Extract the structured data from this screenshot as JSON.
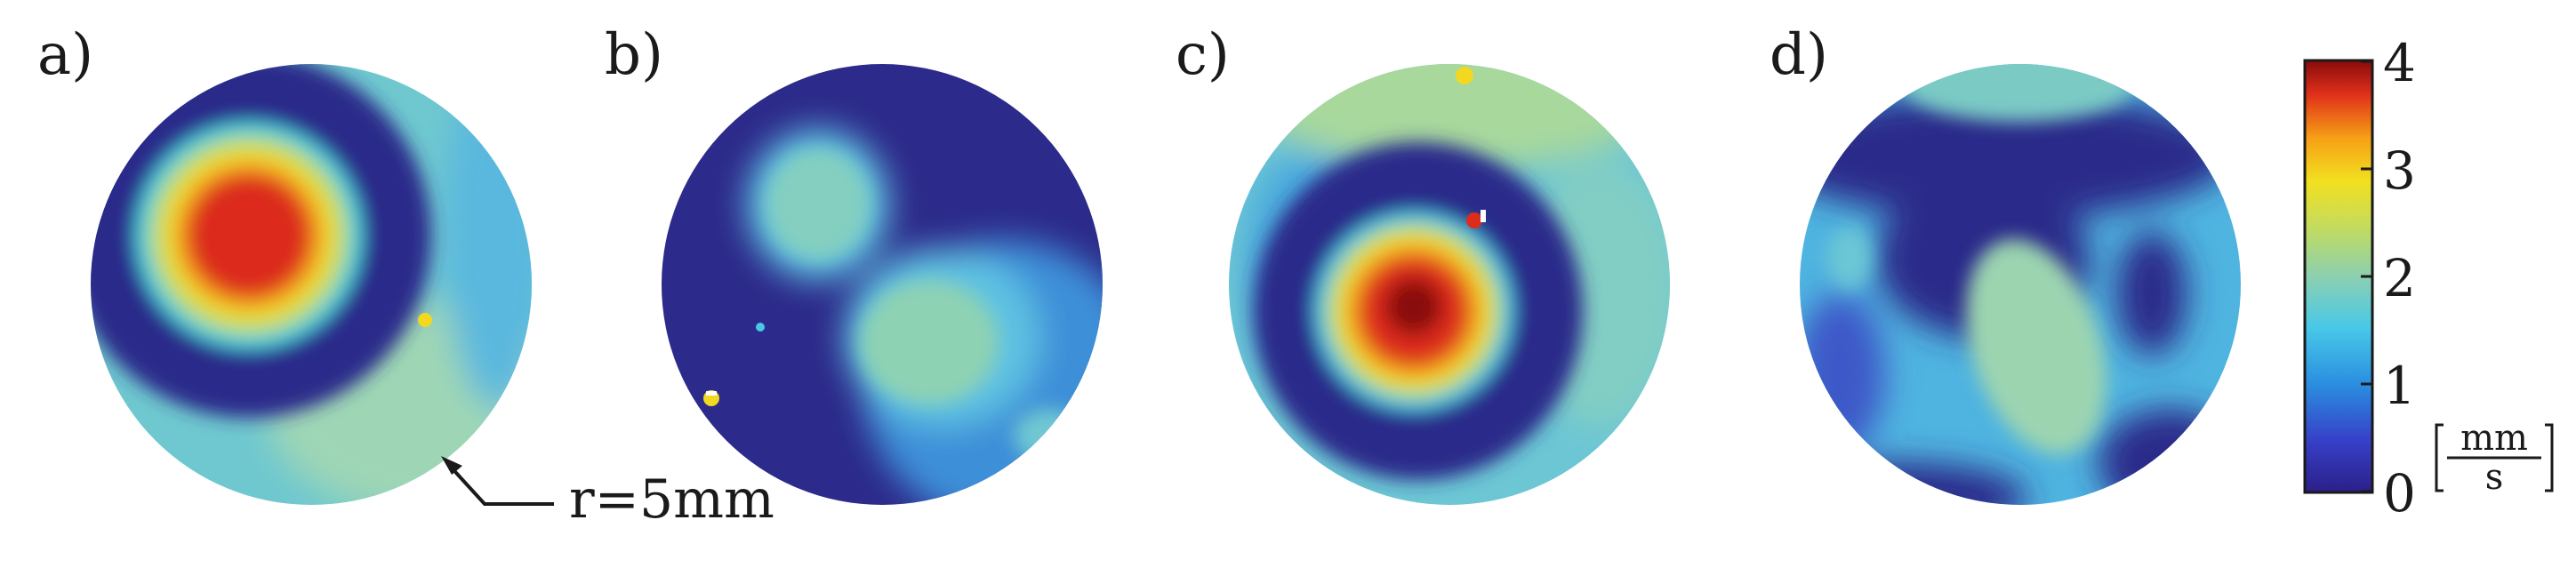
{
  "panels": [
    {
      "label": "a)"
    },
    {
      "label": "b)"
    },
    {
      "label": "c)"
    },
    {
      "label": "d)"
    }
  ],
  "annotation": {
    "text": "r=5mm"
  },
  "colorbar": {
    "ticks": [
      "4",
      "3",
      "2",
      "1",
      "0"
    ],
    "unit_numerator": "mm",
    "unit_denominator": "s",
    "range": [
      0,
      4
    ],
    "colormap": "jet"
  }
}
